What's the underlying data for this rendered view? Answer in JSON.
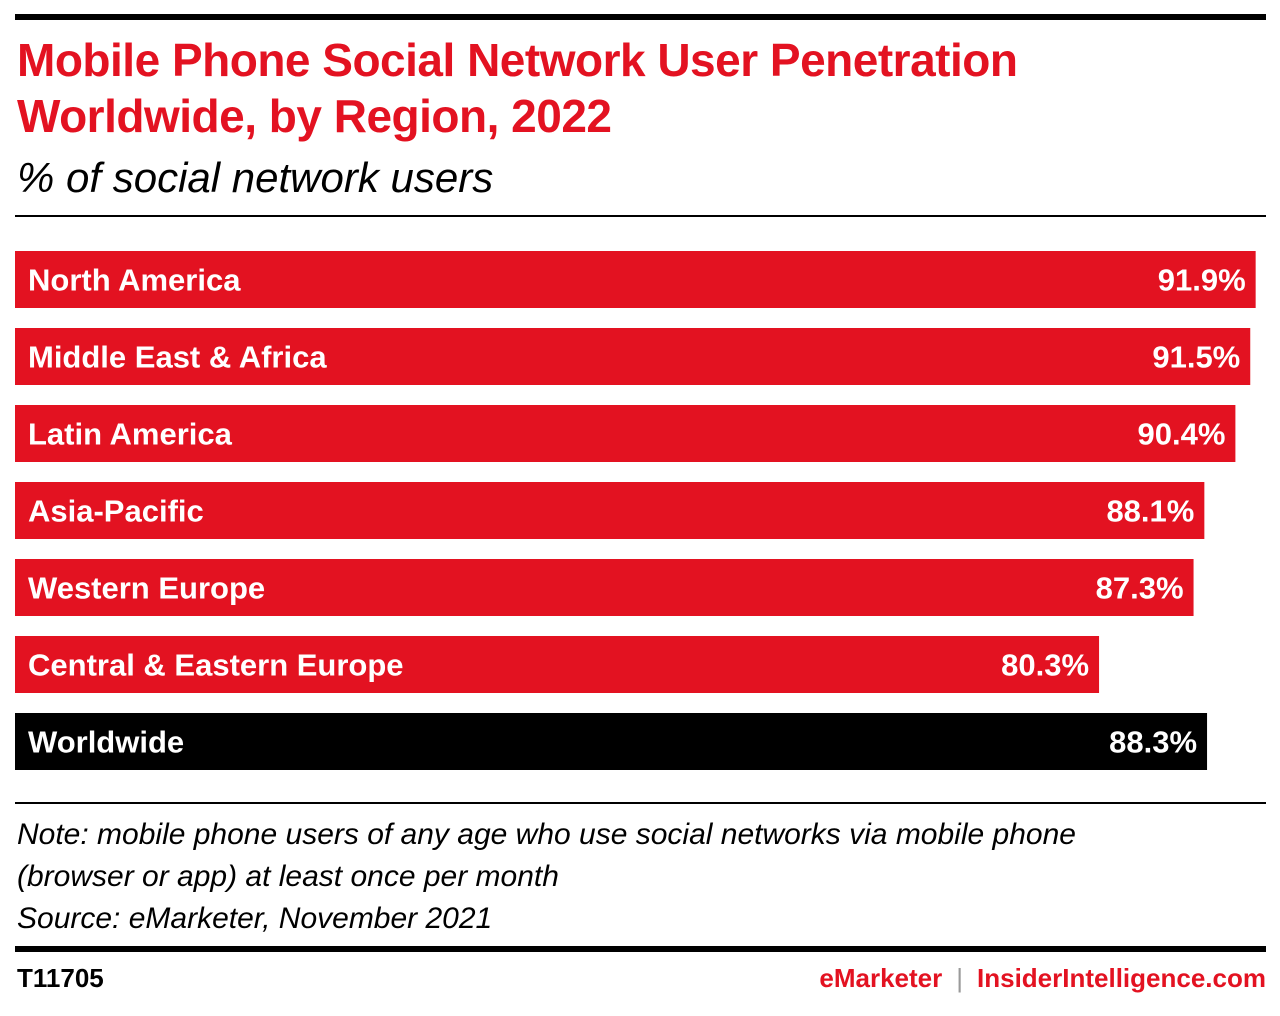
{
  "chart_data": {
    "type": "bar",
    "orientation": "horizontal",
    "title": "Mobile Phone Social Network User Penetration Worldwide, by Region, 2022",
    "subtitle": "% of social network users",
    "categories": [
      "North America",
      "Middle East & Africa",
      "Latin America",
      "Asia-Pacific",
      "Western Europe",
      "Central & Eastern Europe",
      "Worldwide"
    ],
    "values": [
      91.9,
      91.5,
      90.4,
      88.1,
      87.3,
      80.3,
      88.3
    ],
    "value_labels": [
      "91.9%",
      "91.5%",
      "90.4%",
      "88.1%",
      "87.3%",
      "80.3%",
      "88.3%"
    ],
    "bar_colors": [
      "#e31221",
      "#e31221",
      "#e31221",
      "#e31221",
      "#e31221",
      "#e31221",
      "#000000"
    ],
    "unit": "%",
    "grid": false,
    "legend": "none"
  },
  "notes": {
    "note_line1": "Note: mobile phone users of any age who use social networks via mobile phone",
    "note_line2": "(browser or app) at least once per month",
    "source": "Source: eMarketer, November 2021"
  },
  "footer": {
    "chart_id": "T11705",
    "brand_emarketer": "eMarketer",
    "brand_separator": "|",
    "brand_insider": "InsiderIntelligence.com"
  },
  "colors": {
    "accent": "#e31221",
    "highlight": "#000000",
    "text_on_bar": "#ffffff"
  }
}
